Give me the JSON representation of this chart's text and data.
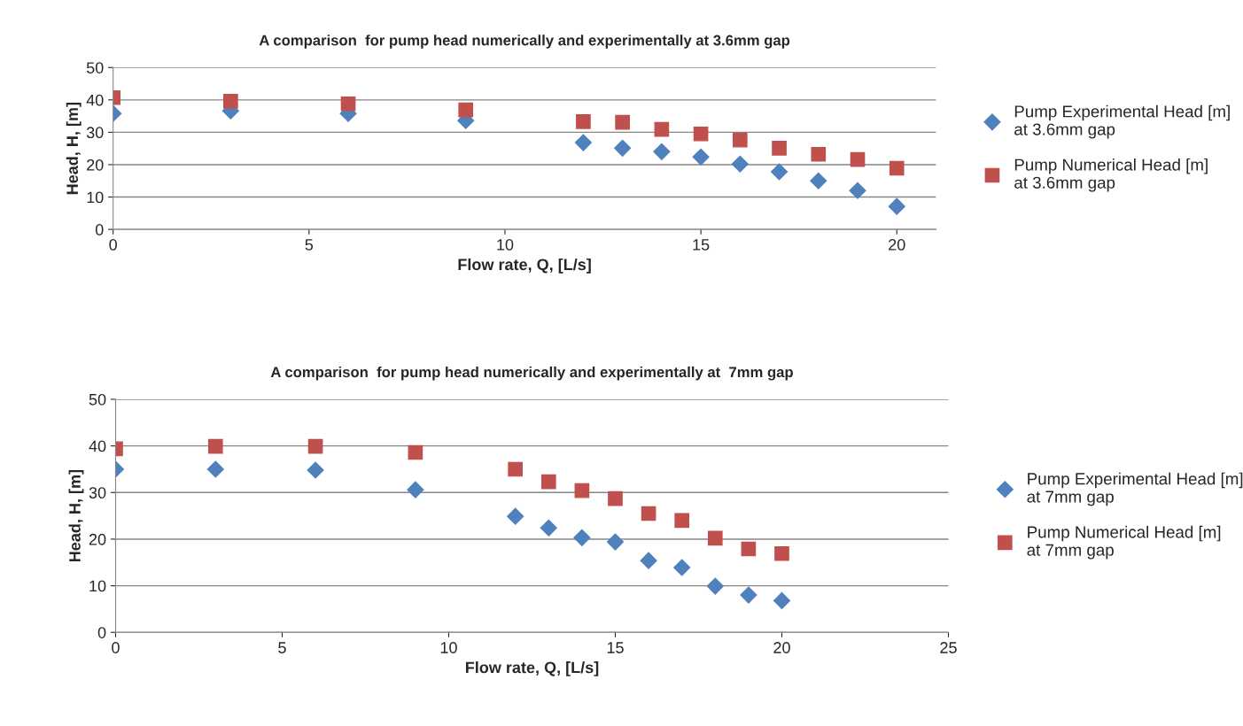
{
  "chart_data": [
    {
      "type": "scatter",
      "title": "A comparison  for pump head numerically and experimentally at 3.6mm gap",
      "xlabel": "Flow rate, Q, [L/s]",
      "ylabel": "Head, H, [m]",
      "x": [
        0,
        3,
        6,
        9,
        12,
        13,
        14,
        15,
        16,
        17,
        18,
        19,
        20
      ],
      "series": [
        {
          "name": "Pump Experimental Head [m] at 3.6mm gap",
          "color": "#4f81bd",
          "marker": "diamond",
          "values": [
            35.8,
            36.6,
            35.8,
            33.6,
            26.8,
            25.1,
            24,
            22.4,
            20.2,
            17.8,
            15,
            12,
            7.1
          ]
        },
        {
          "name": "Pump Numerical Head [m] at 3.6mm gap",
          "color": "#c0504d",
          "marker": "square",
          "values": [
            40.7,
            39.6,
            38.8,
            36.9,
            33.3,
            33.1,
            30.9,
            29.5,
            27.6,
            25.1,
            23.2,
            21.6,
            18.9
          ]
        }
      ],
      "xlim": [
        0,
        21
      ],
      "xticks": [
        0,
        5,
        10,
        15,
        20
      ],
      "ylim": [
        0,
        50
      ],
      "yticks": [
        0,
        10,
        20,
        30,
        40,
        50
      ],
      "grid": "y",
      "legend": "right"
    },
    {
      "type": "scatter",
      "title": "A comparison  for pump head numerically and experimentally at  7mm gap",
      "xlabel": "Flow rate, Q, [L/s]",
      "ylabel": "Head, H, [m]",
      "x": [
        0,
        3,
        6,
        9,
        12,
        13,
        14,
        15,
        16,
        17,
        18,
        19,
        20
      ],
      "series": [
        {
          "name": "Pump Experimental Head [m] at 7mm gap",
          "color": "#4f81bd",
          "marker": "diamond",
          "values": [
            35,
            35,
            34.8,
            30.6,
            24.9,
            22.4,
            20.3,
            19.4,
            15.4,
            13.9,
            9.9,
            8,
            6.8
          ]
        },
        {
          "name": "Pump Numerical Head [m] at 7mm gap",
          "color": "#c0504d",
          "marker": "square",
          "values": [
            39.4,
            39.9,
            39.9,
            38.6,
            35,
            32.3,
            30.4,
            28.7,
            25.5,
            24,
            20.2,
            17.9,
            16.9
          ]
        }
      ],
      "xlim": [
        0,
        25
      ],
      "xticks": [
        0,
        5,
        10,
        15,
        20,
        25
      ],
      "ylim": [
        0,
        50
      ],
      "yticks": [
        0,
        10,
        20,
        30,
        40,
        50
      ],
      "grid": "y",
      "legend": "right"
    }
  ]
}
